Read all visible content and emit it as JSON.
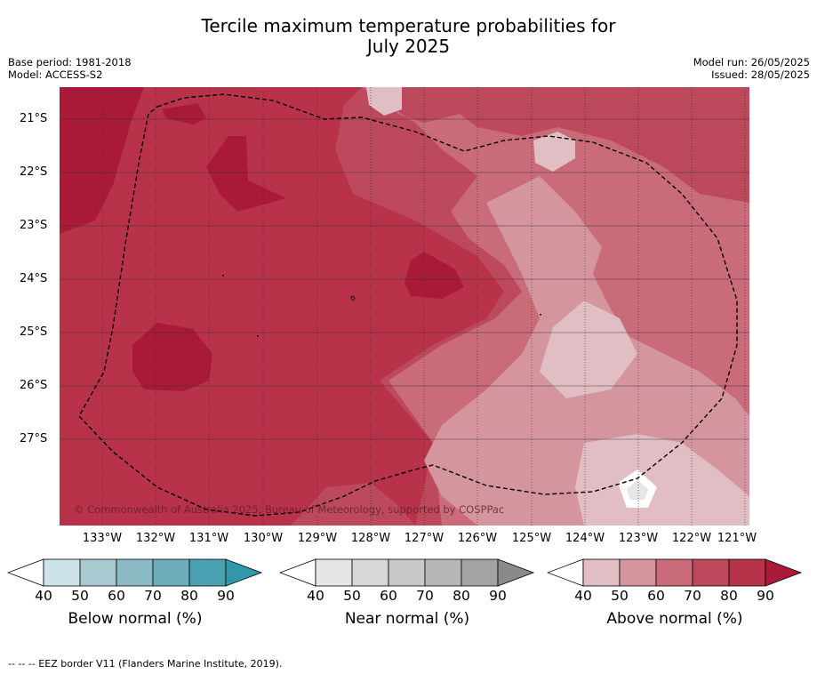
{
  "title": {
    "line1": "Tercile maximum temperature probabilities for",
    "line2": "July 2025"
  },
  "meta_left": {
    "base_period": "Base period: 1981-2018",
    "model": "Model: ACCESS-S2"
  },
  "meta_right": {
    "model_run": "Model run: 26/05/2025",
    "issued": "Issued: 28/05/2025"
  },
  "map": {
    "copyright": "© Commonwealth of Australia 2025, Bureau of Meteorology, supported by COSPPac",
    "lat_labels": [
      "21°S",
      "22°S",
      "23°S",
      "24°S",
      "25°S",
      "26°S",
      "27°S"
    ],
    "lon_labels": [
      "133°W",
      "132°W",
      "131°W",
      "130°W",
      "129°W",
      "128°W",
      "127°W",
      "126°W",
      "125°W",
      "124°W",
      "123°W",
      "122°W",
      "121°W"
    ],
    "shading_colors": {
      "above_40_50": "#e0bec4",
      "above_50_60": "#d5959e",
      "above_60_70": "#c96b78",
      "above_70_80": "#bd4a5c",
      "above_80_90": "#b8324a",
      "above_90": "#a81a38"
    }
  },
  "colorbars": [
    {
      "title": "Below normal (%)",
      "ticks": [
        "40",
        "50",
        "60",
        "70",
        "80",
        "90"
      ],
      "colors": [
        "#cde3e8",
        "#a9c9d0",
        "#8cbbc6",
        "#6fadbb",
        "#48a0b1"
      ],
      "arrow_color": "#3198ab"
    },
    {
      "title": "Near normal (%)",
      "ticks": [
        "40",
        "50",
        "60",
        "70",
        "80",
        "90"
      ],
      "colors": [
        "#e6e6e6",
        "#d7d7d7",
        "#c8c8c8",
        "#b6b6b6",
        "#a3a3a3"
      ],
      "arrow_color": "#8a8a8a"
    },
    {
      "title": "Above normal (%)",
      "ticks": [
        "40",
        "50",
        "60",
        "70",
        "80",
        "90"
      ],
      "colors": [
        "#e0bec4",
        "#d5959e",
        "#c96b78",
        "#bd4a5c",
        "#b8324a"
      ],
      "arrow_color": "#a81a38"
    }
  ],
  "footnote": "--  --  -- EEZ border V11 (Flanders Marine Institute, 2019)."
}
